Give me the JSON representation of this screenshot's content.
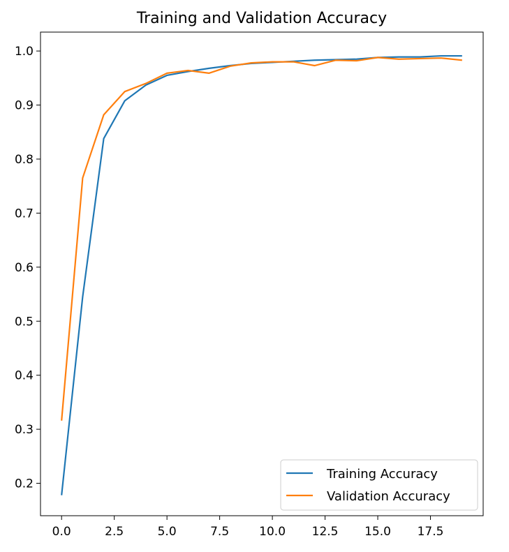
{
  "chart_data": {
    "type": "line",
    "title": "Training and Validation Accuracy",
    "xlabel": "",
    "ylabel": "",
    "x": [
      0,
      1,
      2,
      3,
      4,
      5,
      6,
      7,
      8,
      9,
      10,
      11,
      12,
      13,
      14,
      15,
      16,
      17,
      18,
      19
    ],
    "xlim": [
      -1.0,
      20.0
    ],
    "ylim": [
      0.14,
      1.035
    ],
    "xticks": [
      0.0,
      2.5,
      5.0,
      7.5,
      10.0,
      12.5,
      15.0,
      17.5
    ],
    "xtick_labels": [
      "0.0",
      "2.5",
      "5.0",
      "7.5",
      "10.0",
      "12.5",
      "15.0",
      "17.5"
    ],
    "yticks": [
      0.2,
      0.3,
      0.4,
      0.5,
      0.6,
      0.7,
      0.8,
      0.9,
      1.0
    ],
    "ytick_labels": [
      "0.2",
      "0.3",
      "0.4",
      "0.5",
      "0.6",
      "0.7",
      "0.8",
      "0.9",
      "1.0"
    ],
    "grid": false,
    "legend_position": "lower-right",
    "series": [
      {
        "name": "Training Accuracy",
        "color": "#1f77b4",
        "values": [
          0.178,
          0.545,
          0.838,
          0.908,
          0.937,
          0.955,
          0.962,
          0.968,
          0.973,
          0.977,
          0.979,
          0.981,
          0.983,
          0.984,
          0.985,
          0.988,
          0.989,
          0.989,
          0.991,
          0.991
        ]
      },
      {
        "name": "Validation Accuracy",
        "color": "#ff7f0e",
        "values": [
          0.316,
          0.765,
          0.882,
          0.925,
          0.94,
          0.959,
          0.964,
          0.959,
          0.972,
          0.978,
          0.98,
          0.98,
          0.973,
          0.983,
          0.982,
          0.988,
          0.985,
          0.986,
          0.987,
          0.983
        ]
      }
    ]
  }
}
